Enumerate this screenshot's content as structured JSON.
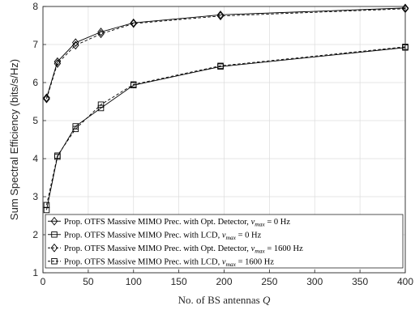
{
  "chart_data": {
    "type": "line",
    "xlabel_main": "No. of BS antennas ",
    "xlabel_var": "Q",
    "ylabel": "Sum Spectral Efficiency (bits/s/Hz)",
    "xlim": [
      0,
      400
    ],
    "ylim": [
      1,
      8
    ],
    "xticks": [
      "0",
      "50",
      "100",
      "150",
      "200",
      "250",
      "300",
      "350",
      "400"
    ],
    "yticks": [
      "1",
      "2",
      "3",
      "4",
      "5",
      "6",
      "7",
      "8"
    ],
    "grid": true,
    "legend_position": "bottom-left",
    "series": [
      {
        "legend_prefix": "Prop. OTFS Massive MIMO Prec. with Opt. Detector, ",
        "legend_math": "ν",
        "legend_sub": "max",
        "legend_suffix": " = 0 Hz",
        "marker": "diamond",
        "dash": "solid",
        "x": [
          4,
          16,
          36,
          64,
          100,
          196,
          400
        ],
        "y": [
          5.6,
          6.55,
          7.05,
          7.33,
          7.57,
          7.78,
          7.96
        ]
      },
      {
        "legend_prefix": "Prop. OTFS Massive MIMO Prec. with LCD, ",
        "legend_math": "ν",
        "legend_sub": "max",
        "legend_suffix": " = 0 Hz",
        "marker": "square",
        "dash": "solid",
        "x": [
          4,
          16,
          36,
          64,
          100,
          196,
          400
        ],
        "y": [
          2.65,
          4.05,
          4.85,
          5.33,
          5.93,
          6.42,
          6.92
        ]
      },
      {
        "legend_prefix": "Prop. OTFS Massive MIMO Prec. with Opt. Detector, ",
        "legend_math": "ν",
        "legend_sub": "max",
        "legend_suffix": " = 1600 Hz",
        "marker": "diamond",
        "dash": "dashed",
        "x": [
          4,
          16,
          36,
          64,
          100,
          196,
          400
        ],
        "y": [
          5.57,
          6.5,
          6.98,
          7.28,
          7.55,
          7.75,
          7.94
        ]
      },
      {
        "legend_prefix": "Prop. OTFS Massive MIMO Prec. with LCD, ",
        "legend_math": "ν",
        "legend_sub": "max",
        "legend_suffix": " = 1600 Hz",
        "marker": "square",
        "dash": "dashed",
        "x": [
          4,
          16,
          36,
          64,
          100,
          196,
          400
        ],
        "y": [
          2.78,
          4.08,
          4.78,
          5.42,
          5.95,
          6.44,
          6.94
        ]
      }
    ]
  }
}
